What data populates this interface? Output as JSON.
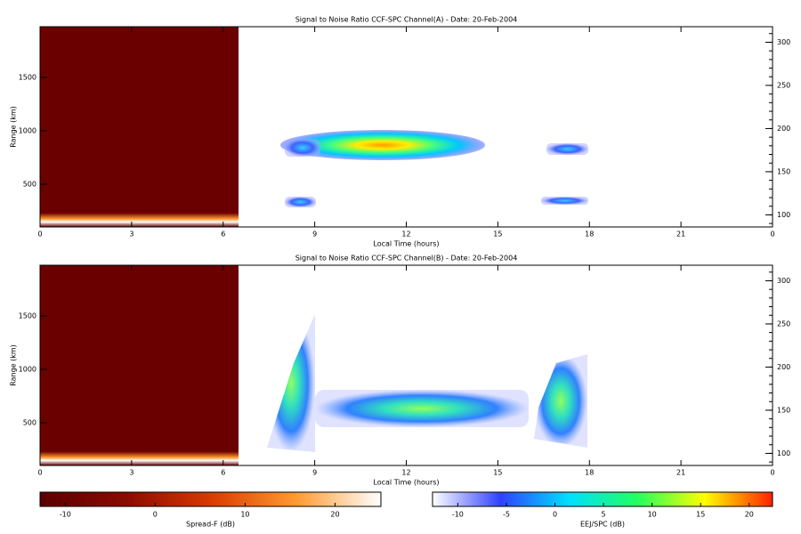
{
  "chart_data": [
    {
      "type": "heatmap",
      "title": "Signal to Noise Ratio CCF-SPC Channel(A) - Date: 20-Feb-2004",
      "x_label": "Local Time (hours)",
      "y_label": "Range (km)",
      "xlim": [
        0,
        24
      ],
      "xticks": [
        0,
        3,
        6,
        9,
        12,
        15,
        18,
        21,
        {
          "value": 24,
          "label": "0"
        }
      ],
      "ylim": [
        100,
        1975
      ],
      "yticks": [
        500,
        1000,
        1500
      ],
      "y2lim": [
        86,
        318
      ],
      "y2ticks": [
        100,
        150,
        200,
        250,
        300
      ]
    },
    {
      "type": "heatmap",
      "title": "Signal to Noise Ratio CCF-SPC Channel(B) - Date: 20-Feb-2004",
      "x_label": "Local Time (hours)",
      "y_label": "Range (km)",
      "xlim": [
        0,
        24
      ],
      "xticks": [
        0,
        3,
        6,
        9,
        12,
        15,
        18,
        21,
        {
          "value": 24,
          "label": "0"
        }
      ],
      "ylim": [
        100,
        1975
      ],
      "yticks": [
        500,
        1000,
        1500
      ],
      "y2lim": [
        86,
        318
      ],
      "y2ticks": [
        100,
        150,
        200,
        250,
        300
      ]
    },
    {
      "type": "colorbar",
      "label": "Spread-F (dB)",
      "xlim": [
        -12.8,
        25.1
      ],
      "xticks": [
        -10,
        0,
        10,
        20
      ],
      "colors": [
        "#5a0000",
        "#8a0a00",
        "#d83a00",
        "#ff9a30",
        "#ffffff"
      ]
    },
    {
      "type": "colorbar",
      "label": "EEJ/SPC (dB)",
      "xlim": [
        -12.6,
        22.4
      ],
      "xticks": [
        -10,
        -5,
        0,
        5,
        10,
        15,
        20
      ],
      "colors": [
        "#ffffff",
        "#3040ff",
        "#00e0ff",
        "#20ff60",
        "#ffff00",
        "#ff2000"
      ]
    }
  ]
}
